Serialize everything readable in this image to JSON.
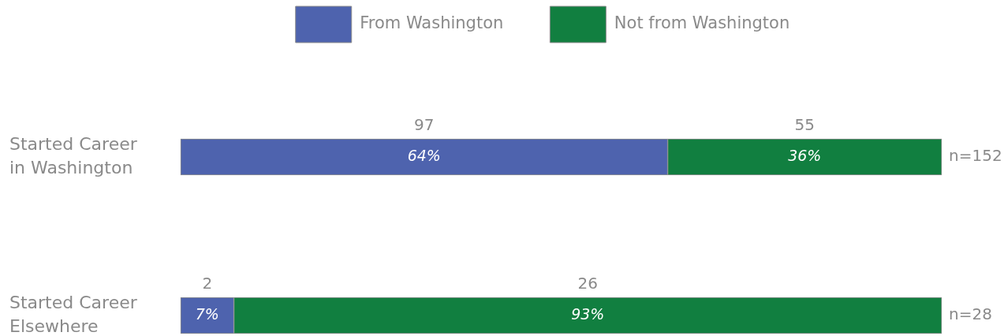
{
  "chart_data": {
    "type": "bar",
    "orientation": "horizontal",
    "stacked": true,
    "categories": [
      "Started Career in Washington",
      "Started Career Elsewhere"
    ],
    "series": [
      {
        "name": "From Washington",
        "color": "#4e63ae",
        "values": [
          64,
          7
        ],
        "value_labels": [
          "64%",
          "7%"
        ]
      },
      {
        "name": "Not from Washington",
        "color": "#117f40",
        "values": [
          36,
          93
        ],
        "value_labels": [
          "36%",
          "93%"
        ]
      }
    ],
    "xlim": [
      0,
      100
    ],
    "tick_labels": "y",
    "legend": "top",
    "annotations": [
      "97",
      "55",
      "2",
      "26",
      {
        "text": "n=152",
        "x": 100,
        "y": "Started Career in Washington"
      },
      {
        "text": "n=28",
        "x": 100,
        "y": "Started Career Elsewhere"
      }
    ]
  }
}
